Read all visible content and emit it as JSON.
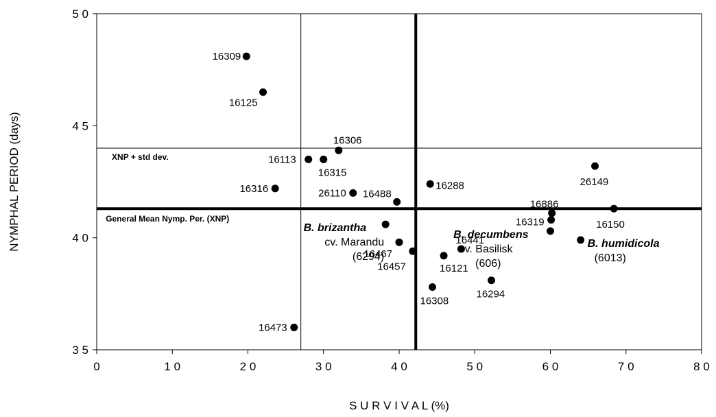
{
  "chart_data": {
    "type": "scatter",
    "title": "",
    "xlabel": "S U R V I V A L (%)",
    "ylabel": "NYMPHAL PERIOD (days)",
    "xlim": [
      0,
      80
    ],
    "ylim": [
      35,
      50
    ],
    "x_ticks": [
      0,
      10,
      20,
      30,
      40,
      50,
      60,
      70,
      80
    ],
    "y_ticks": [
      35,
      40,
      45,
      50
    ],
    "x_tick_labels": [
      "0",
      "1 0",
      "2 0",
      "3 0",
      "4 0",
      "5 0",
      "6 0",
      "7 0",
      "8 0"
    ],
    "y_tick_labels": [
      "3 5",
      "4 0",
      "4 5",
      "5 0"
    ],
    "grid": false,
    "marker_color": "#000000",
    "points": [
      {
        "label": "16309",
        "x": 19.8,
        "y": 48.1
      },
      {
        "label": "16125",
        "x": 22.0,
        "y": 46.5
      },
      {
        "label": "16306",
        "x": 32.0,
        "y": 43.9
      },
      {
        "label": "16113",
        "x": 28.0,
        "y": 43.5
      },
      {
        "label": "16315",
        "x": 30.0,
        "y": 43.5
      },
      {
        "label": "16316",
        "x": 23.6,
        "y": 42.2
      },
      {
        "label": "26110",
        "x": 33.9,
        "y": 42.0
      },
      {
        "label": "16488",
        "x": 39.7,
        "y": 41.6
      },
      {
        "label": "16288",
        "x": 44.1,
        "y": 42.4
      },
      {
        "label": "26149",
        "x": 65.9,
        "y": 43.2
      },
      {
        "label": "16886",
        "x": 60.2,
        "y": 41.1
      },
      {
        "label": "16319",
        "x": 60.1,
        "y": 40.8
      },
      {
        "label": "16150",
        "x": 68.4,
        "y": 41.3
      },
      {
        "label": "",
        "x": 38.2,
        "y": 40.6
      },
      {
        "label": "16467",
        "x": 40.0,
        "y": 39.8
      },
      {
        "label": "16457",
        "x": 41.8,
        "y": 39.4
      },
      {
        "label": "16441",
        "x": 48.2,
        "y": 39.5
      },
      {
        "label": "16121",
        "x": 45.9,
        "y": 39.2
      },
      {
        "label": "",
        "x": 60.0,
        "y": 40.3
      },
      {
        "label": "",
        "x": 64.0,
        "y": 39.9
      },
      {
        "label": "16308",
        "x": 44.4,
        "y": 37.8
      },
      {
        "label": "16294",
        "x": 52.2,
        "y": 38.1
      },
      {
        "label": "16473",
        "x": 26.1,
        "y": 36.0
      }
    ],
    "reference_lines": {
      "mean_survival_x": 42.2,
      "mean_nymphal_y": 41.3,
      "mean_nymphal_label": "General Mean Nymp. Per. (XNP)",
      "xnp_plus_sd_y": 44.0,
      "xnp_plus_sd_label": "XNP +   std dev.",
      "survival_cutoff_x": 27.0
    },
    "annotations": [
      {
        "lines": [
          "B. brizantha",
          "cv. Marandu",
          "(6294)"
        ],
        "x": 38.2,
        "y": 40.6
      },
      {
        "lines": [
          "B. decumbens",
          "cv. Basilisk",
          "(606)"
        ],
        "x": 60.0,
        "y": 40.3
      },
      {
        "lines": [
          "B. humidicola",
          "(6013)"
        ],
        "x": 64.0,
        "y": 39.9
      }
    ]
  }
}
